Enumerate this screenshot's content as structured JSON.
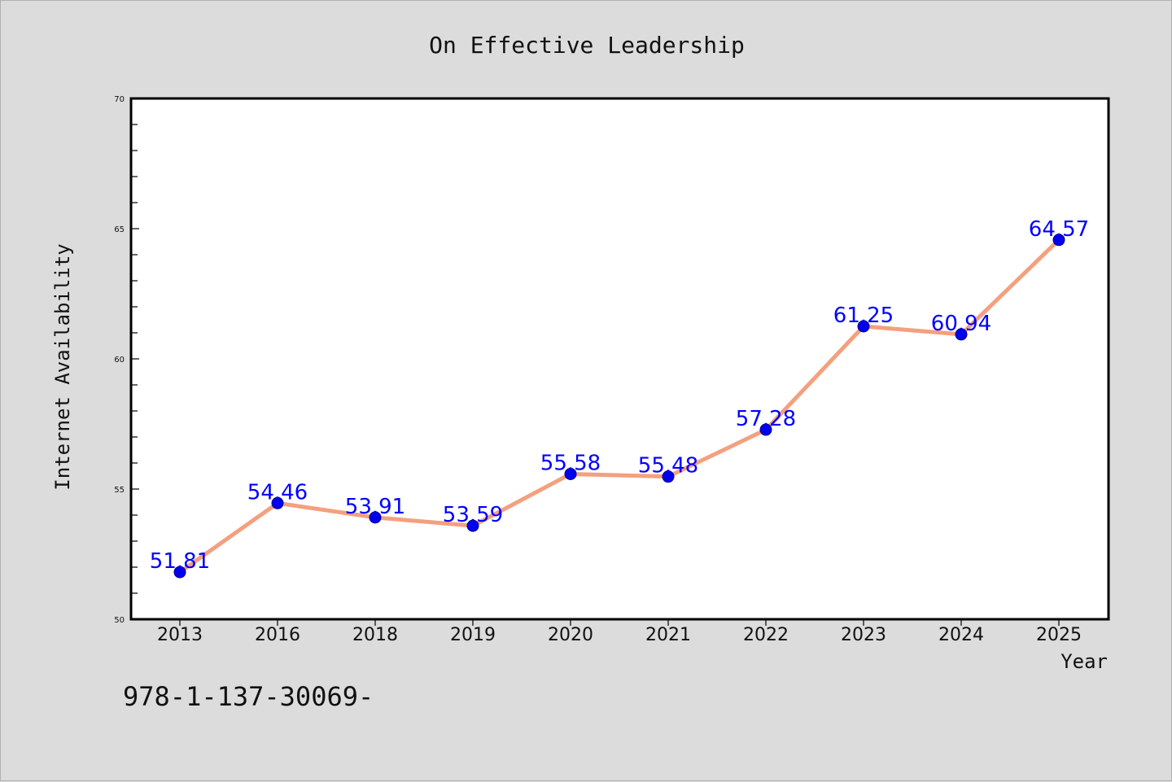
{
  "chart_data": {
    "type": "line",
    "title": "On Effective Leadership",
    "xlabel": "Year",
    "ylabel": "Internet Availability",
    "categories": [
      "2013",
      "2016",
      "2018",
      "2019",
      "2020",
      "2021",
      "2022",
      "2023",
      "2024",
      "2025"
    ],
    "series": [
      {
        "values": [
          51.81,
          54.46,
          53.91,
          53.59,
          55.58,
          55.48,
          57.28,
          61.25,
          60.94,
          64.57
        ],
        "line_color": "#f4a07e",
        "marker_color": "#0000ee"
      }
    ],
    "data_labels": [
      "51.81",
      "54.46",
      "53.91",
      "53.59",
      "55.58",
      "55.48",
      "57.28",
      "61.25",
      "60.94",
      "64.57"
    ],
    "ylim": [
      50,
      70
    ],
    "yticks": [
      50,
      55,
      60,
      65,
      70
    ],
    "grid": false,
    "label_color": "#0000ff"
  },
  "annotation": {
    "text": "978-1-137-30069-"
  }
}
